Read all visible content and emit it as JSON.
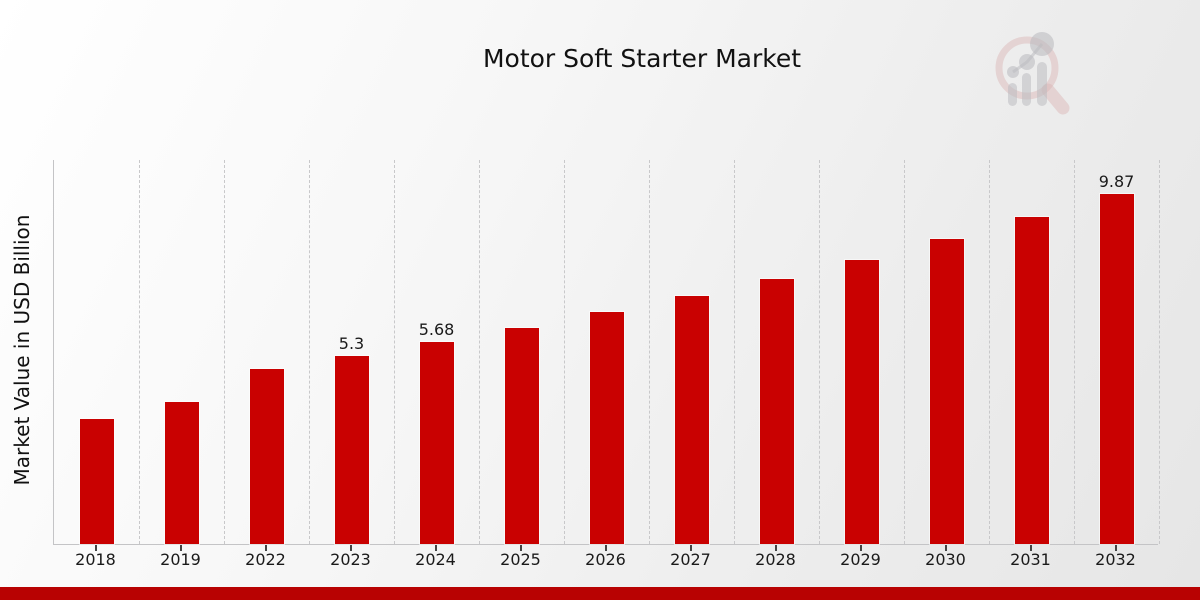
{
  "page": {
    "title": "Motor Soft Starter Market",
    "footer_accent_color": "#b80202",
    "background_top": "#ffffff",
    "background_bottom": "#e6e6e6"
  },
  "chart_data": {
    "type": "bar",
    "title": "Motor Soft Starter Market",
    "ylabel": "Market Value in USD Billion",
    "xlabel": "",
    "categories": [
      "2018",
      "2019",
      "2022",
      "2023",
      "2024",
      "2025",
      "2026",
      "2027",
      "2028",
      "2029",
      "2030",
      "2031",
      "2032"
    ],
    "values": [
      3.52,
      4.0,
      4.93,
      5.3,
      5.68,
      6.08,
      6.53,
      6.98,
      7.47,
      8.0,
      8.6,
      9.22,
      9.87
    ],
    "bar_labels": [
      "",
      "",
      "",
      "5.3",
      "5.68",
      "",
      "",
      "",
      "",
      "",
      "",
      "",
      "9.87"
    ],
    "ylim": [
      0,
      10.85
    ],
    "bar_color": "#c90101",
    "grid": "vertical-dashed",
    "legend": "none"
  },
  "icons": {
    "brand_logo": "magnifier-bar-chart-logo"
  }
}
